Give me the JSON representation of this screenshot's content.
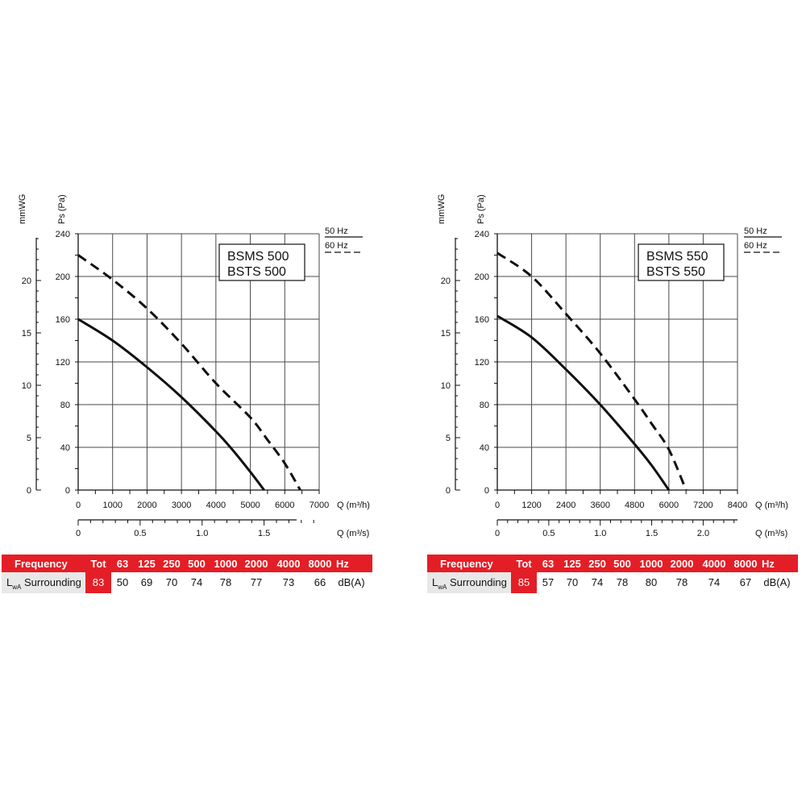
{
  "chart_data": [
    {
      "type": "line",
      "title": "BSMS 500",
      "subtitle": "BSTS 500",
      "ylabel": "Ps (Pa)",
      "ylabel2": "mmWG",
      "xlabel": "Q (m³/h)",
      "xlabel2": "Q (m³/s)",
      "xlim": [
        0,
        7000
      ],
      "ylim": [
        0,
        240
      ],
      "x_ticks": [
        0,
        1000,
        2000,
        3000,
        4000,
        5000,
        6000,
        7000
      ],
      "x_tick_labels": [
        "0",
        "1000",
        "2000",
        "3000",
        "4000",
        "5000",
        "6000",
        "7000"
      ],
      "y_ticks": [
        0,
        40,
        80,
        120,
        160,
        200,
        240
      ],
      "y_tick_labels": [
        "0",
        "40",
        "80",
        "120",
        "160",
        "200",
        "240"
      ],
      "mmwg_ticks": [
        0,
        5,
        10,
        15,
        20
      ],
      "mmwg_tick_labels": [
        "0",
        "5",
        "10",
        "15",
        "20"
      ],
      "m3s_ticks": [
        0,
        0.5,
        1.0,
        1.5
      ],
      "m3s_tick_labels": [
        "0",
        "0.5",
        "1.0",
        "1.5"
      ],
      "grid": true,
      "legend_position": "top-right, outside",
      "series": [
        {
          "name": "50 Hz",
          "style": "solid",
          "x": [
            0,
            1000,
            2000,
            3000,
            4000,
            4500,
            5000,
            5400
          ],
          "y": [
            160,
            140,
            115,
            87,
            55,
            37,
            17,
            0
          ]
        },
        {
          "name": "60 Hz",
          "style": "dashed",
          "x": [
            0,
            1000,
            2000,
            3000,
            4000,
            5000,
            5500,
            6000,
            6450
          ],
          "y": [
            220,
            197,
            170,
            137,
            100,
            68,
            47,
            25,
            0
          ]
        }
      ]
    },
    {
      "type": "line",
      "title": "BSMS 550",
      "subtitle": "BSTS 550",
      "ylabel": "Ps (Pa)",
      "ylabel2": "mmWG",
      "xlabel": "Q (m³/h)",
      "xlabel2": "Q (m³/s)",
      "xlim": [
        0,
        8400
      ],
      "ylim": [
        0,
        240
      ],
      "x_ticks": [
        0,
        1200,
        2400,
        3600,
        4800,
        6000,
        7200,
        8400
      ],
      "x_tick_labels": [
        "0",
        "1200",
        "2400",
        "3600",
        "4800",
        "6000",
        "7200",
        "8400"
      ],
      "y_ticks": [
        0,
        40,
        80,
        120,
        160,
        200,
        240
      ],
      "y_tick_labels": [
        "0",
        "40",
        "80",
        "120",
        "160",
        "200",
        "240"
      ],
      "mmwg_ticks": [
        0,
        5,
        10,
        15,
        20
      ],
      "mmwg_tick_labels": [
        "0",
        "5",
        "10",
        "15",
        "20"
      ],
      "m3s_ticks": [
        0,
        0.5,
        1.0,
        1.5,
        2.0
      ],
      "m3s_tick_labels": [
        "0",
        "0.5",
        "1.0",
        "1.5",
        "2.0"
      ],
      "grid": true,
      "legend_position": "top-right, outside",
      "series": [
        {
          "name": "50 Hz",
          "style": "solid",
          "x": [
            0,
            1200,
            2400,
            3600,
            4800,
            5400,
            6000
          ],
          "y": [
            163,
            143,
            113,
            80,
            43,
            23,
            0
          ]
        },
        {
          "name": "60 Hz",
          "style": "dashed",
          "x": [
            0,
            1200,
            2400,
            3600,
            4800,
            5400,
            6000,
            6600
          ],
          "y": [
            222,
            200,
            165,
            128,
            85,
            62,
            38,
            0
          ]
        }
      ]
    }
  ],
  "legend": {
    "hz50": "50 Hz",
    "hz60": "60 Hz"
  },
  "tables": [
    {
      "frequency_label": "Frequency",
      "tot_label": "Tot",
      "bands": [
        "63",
        "125",
        "250",
        "500",
        "1000",
        "2000",
        "4000",
        "8000"
      ],
      "unit_header": "Hz",
      "row_label_main": "L",
      "row_label_sub": "wA",
      "row_label_rest": " Surrounding",
      "tot": 83,
      "values": [
        50,
        69,
        70,
        74,
        78,
        77,
        73,
        66
      ],
      "unit": "dB(A)"
    },
    {
      "frequency_label": "Frequency",
      "tot_label": "Tot",
      "bands": [
        "63",
        "125",
        "250",
        "500",
        "1000",
        "2000",
        "4000",
        "8000"
      ],
      "unit_header": "Hz",
      "row_label_main": "L",
      "row_label_sub": "wA",
      "row_label_rest": " Surrounding",
      "tot": 85,
      "values": [
        57,
        70,
        74,
        78,
        80,
        78,
        74,
        67
      ],
      "unit": "dB(A)"
    }
  ],
  "colors": {
    "header_red": "#e41e26",
    "row_grey": "#e8e8e8",
    "ink": "#111111",
    "grid": "#4a4a4a"
  }
}
